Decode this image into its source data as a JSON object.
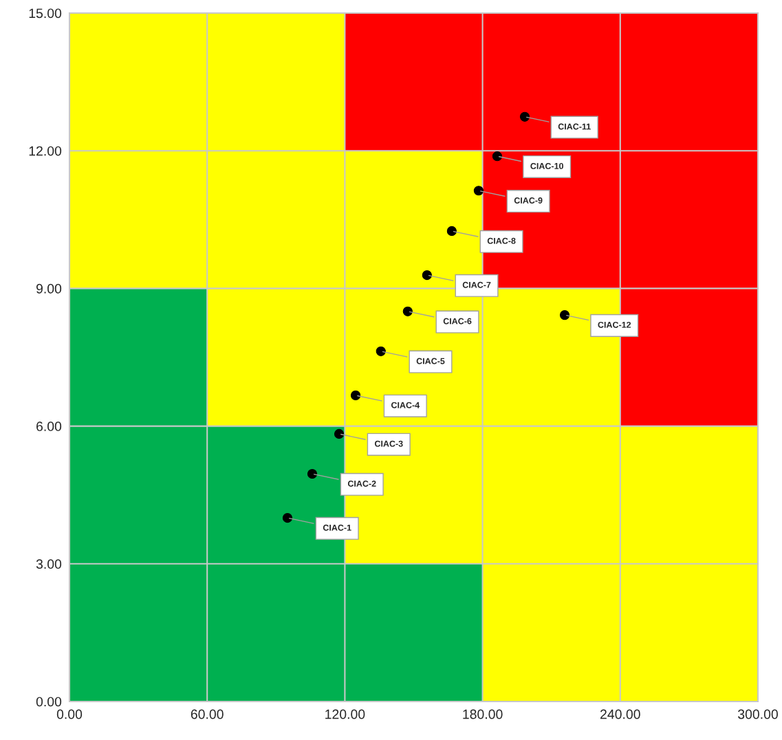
{
  "chart_data": {
    "type": "scatter",
    "marker": "circle",
    "grid": true,
    "series": [
      {
        "type": "bar",
        "color": "#00b050",
        "x": [
          30,
          90,
          150
        ],
        "base": [
          0,
          0,
          0
        ],
        "values": [
          9,
          6,
          3
        ]
      },
      {
        "type": "bar",
        "color": "#ffff00",
        "x": [
          30,
          90,
          150,
          210,
          270
        ],
        "base": [
          9,
          6,
          3,
          0,
          0
        ],
        "values": [
          6,
          9,
          9,
          9,
          6
        ]
      },
      {
        "type": "bar",
        "color": "#ff0000",
        "x": [
          150,
          210,
          270
        ],
        "base": [
          12,
          9,
          6
        ],
        "values": [
          3,
          6,
          9
        ]
      },
      {
        "color": "#000000",
        "x": [
          95.0,
          105.8,
          117.5,
          124.7,
          135.7,
          147.4,
          155.8,
          166.6,
          178.3,
          186.4,
          198.4,
          215.8
        ],
        "values": [
          4.0,
          4.96,
          5.83,
          6.67,
          7.63,
          8.5,
          9.29,
          10.25,
          11.13,
          11.88,
          12.74,
          8.42
        ]
      }
    ],
    "annotations": [
      {
        "text": "CIAC-1",
        "x": 95.0,
        "y": 4.0
      },
      {
        "text": "CIAC-2",
        "x": 105.8,
        "y": 4.96
      },
      {
        "text": "CIAC-3",
        "x": 117.5,
        "y": 5.83
      },
      {
        "text": "CIAC-4",
        "x": 124.7,
        "y": 6.67
      },
      {
        "text": "CIAC-5",
        "x": 135.7,
        "y": 7.63
      },
      {
        "text": "CIAC-6",
        "x": 147.4,
        "y": 8.5
      },
      {
        "text": "CIAC-7",
        "x": 155.8,
        "y": 9.29
      },
      {
        "text": "CIAC-8",
        "x": 166.6,
        "y": 10.25
      },
      {
        "text": "CIAC-9",
        "x": 178.3,
        "y": 11.13
      },
      {
        "text": "CIAC-10",
        "x": 186.4,
        "y": 11.88
      },
      {
        "text": "CIAC-11",
        "x": 198.4,
        "y": 12.74
      },
      {
        "text": "CIAC-12",
        "x": 215.8,
        "y": 8.42
      }
    ],
    "xlim": [
      0,
      300
    ],
    "xticks": [
      {
        "value": 0,
        "label": "0.00"
      },
      {
        "value": 60,
        "label": "60.00"
      },
      {
        "value": 120,
        "label": "120.00"
      },
      {
        "value": 180,
        "label": "180.00"
      },
      {
        "value": 240,
        "label": "240.00"
      },
      {
        "value": 300,
        "label": "300.00"
      }
    ],
    "ylim": [
      0,
      15
    ],
    "yticks": [
      {
        "value": 0,
        "label": "0.00"
      },
      {
        "value": 3,
        "label": "3.00"
      },
      {
        "value": 6,
        "label": "6.00"
      },
      {
        "value": 9,
        "label": "9.00"
      },
      {
        "value": 12,
        "label": "12.00"
      },
      {
        "value": 15,
        "label": "15.00"
      }
    ]
  }
}
